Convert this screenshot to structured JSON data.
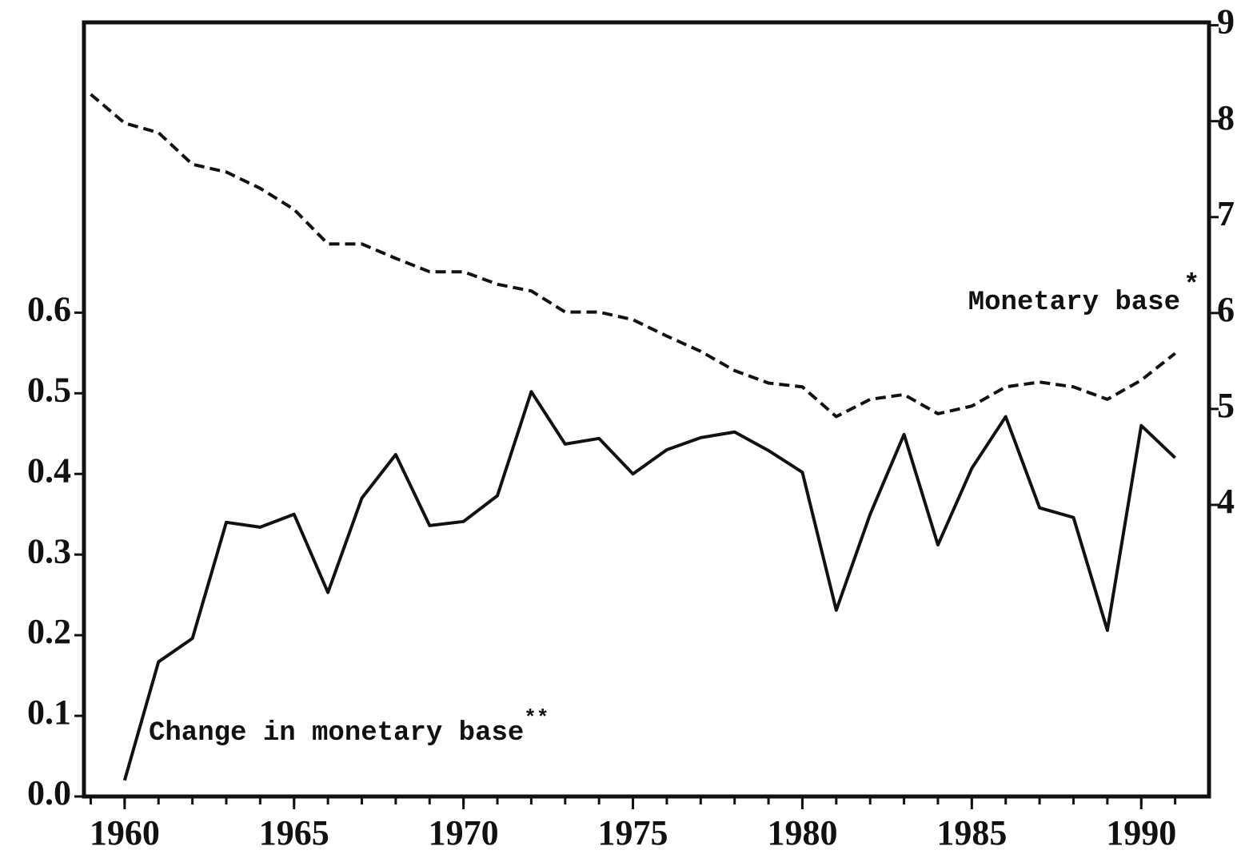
{
  "chart_data": {
    "type": "line",
    "x": [
      1959,
      1960,
      1961,
      1962,
      1963,
      1964,
      1965,
      1966,
      1967,
      1968,
      1969,
      1970,
      1971,
      1972,
      1973,
      1974,
      1975,
      1976,
      1977,
      1978,
      1979,
      1980,
      1981,
      1982,
      1983,
      1984,
      1985,
      1986,
      1987,
      1988,
      1989,
      1990,
      1991
    ],
    "series": [
      {
        "name": "Change in monetary base",
        "note": "**",
        "color": "#111111",
        "dash": "solid",
        "values": [
          null,
          0.02,
          0.167,
          0.196,
          0.34,
          0.334,
          0.35,
          0.253,
          0.37,
          0.424,
          0.336,
          0.341,
          0.373,
          0.502,
          0.437,
          0.444,
          0.4,
          0.43,
          0.445,
          0.452,
          0.429,
          0.402,
          0.231,
          0.35,
          0.449,
          0.312,
          0.407,
          0.471,
          0.358,
          0.346,
          0.206,
          0.46,
          0.42
        ]
      },
      {
        "name": "Monetary base",
        "note": "*",
        "color": "#111111",
        "dash": "dashed",
        "axis": "y2",
        "values": [
          8.28,
          7.98,
          7.88,
          7.55,
          7.47,
          7.3,
          7.08,
          6.72,
          6.72,
          6.57,
          6.43,
          6.43,
          6.3,
          6.23,
          6.01,
          6.01,
          5.93,
          5.76,
          5.6,
          5.4,
          5.27,
          5.23,
          4.92,
          5.1,
          5.15,
          4.95,
          5.03,
          5.23,
          5.28,
          5.23,
          5.1,
          5.3,
          5.58
        ]
      }
    ],
    "xlim": [
      1958.8,
      1992
    ],
    "xticks": [
      1960,
      1965,
      1970,
      1975,
      1980,
      1985,
      1990
    ],
    "xminorticks": [
      1959,
      1960,
      1961,
      1962,
      1963,
      1964,
      1965,
      1966,
      1967,
      1968,
      1969,
      1970,
      1971,
      1972,
      1973,
      1974,
      1975,
      1976,
      1977,
      1978,
      1979,
      1980,
      1981,
      1982,
      1983,
      1984,
      1985,
      1986,
      1987,
      1988,
      1989,
      1990,
      1991
    ],
    "ylim": [
      0,
      0.96
    ],
    "yticks": [
      {
        "value": 0,
        "label": "0.0"
      },
      0.1,
      0.2,
      0.3,
      0.4,
      0.5,
      0.6
    ],
    "y2lim": [
      0.96,
      9.03
    ],
    "y2ticks": [
      4,
      5,
      6,
      7,
      8,
      9
    ],
    "grid": false
  }
}
